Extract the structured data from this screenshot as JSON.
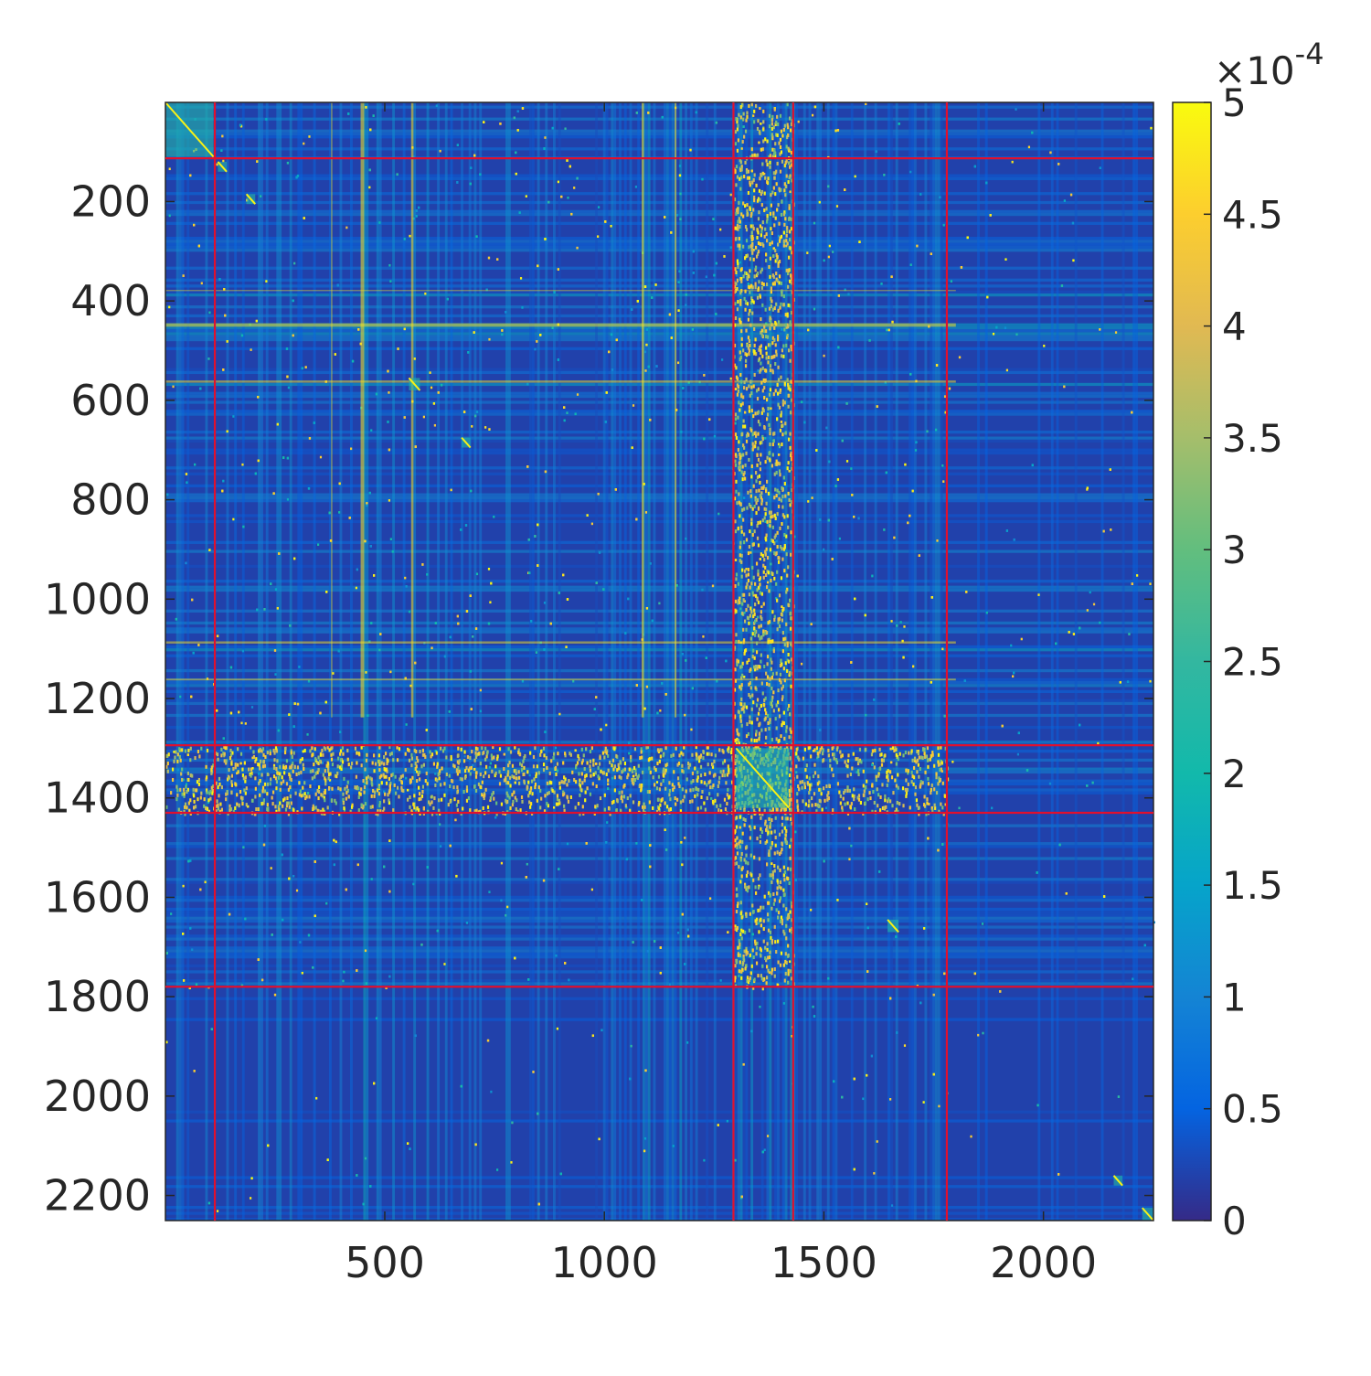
{
  "chart_data": {
    "type": "heatmap",
    "title": "",
    "xlabel": "",
    "ylabel": "",
    "matrix_size": 2250,
    "xlim": [
      1,
      2250
    ],
    "ylim": [
      1,
      2250
    ],
    "y_direction": "reversed",
    "x_ticks": [
      500,
      1000,
      1500,
      2000
    ],
    "y_ticks": [
      200,
      400,
      600,
      800,
      1000,
      1200,
      1400,
      1600,
      1800,
      2000,
      2200
    ],
    "x_tick_labels": [
      "500",
      "1000",
      "1500",
      "2000"
    ],
    "y_tick_labels": [
      "200",
      "400",
      "600",
      "800",
      "1000",
      "1200",
      "1400",
      "1600",
      "1800",
      "2000",
      "2200"
    ],
    "colormap": "parula",
    "color_limits": [
      0,
      0.0005
    ],
    "colorbar": {
      "location": "right",
      "exponent_label": "×10",
      "exponent_power": "-4",
      "ticks": [
        0,
        0.5,
        1,
        1.5,
        2,
        2.5,
        3,
        3.5,
        4,
        4.5,
        5
      ],
      "tick_labels": [
        "0",
        "0.5",
        "1",
        "1.5",
        "2",
        "2.5",
        "3",
        "3.5",
        "4",
        "4.5",
        "5"
      ]
    },
    "block_boundaries": [
      113,
      1294,
      1430,
      1780
    ],
    "boundary_color": "#e0102e",
    "bright_bands": [
      {
        "start": 378,
        "end": 385
      },
      {
        "start": 445,
        "end": 468
      },
      {
        "start": 560,
        "end": 575
      },
      {
        "start": 1085,
        "end": 1100
      },
      {
        "start": 1160,
        "end": 1172
      }
    ],
    "diagonal_blocks": [
      {
        "start": 1,
        "end": 110
      },
      {
        "start": 120,
        "end": 140
      },
      {
        "start": 185,
        "end": 205
      },
      {
        "start": 555,
        "end": 580
      },
      {
        "start": 675,
        "end": 695
      },
      {
        "start": 1300,
        "end": 1420
      },
      {
        "start": 1645,
        "end": 1670
      },
      {
        "start": 2160,
        "end": 2180
      },
      {
        "start": 2225,
        "end": 2250
      }
    ]
  }
}
